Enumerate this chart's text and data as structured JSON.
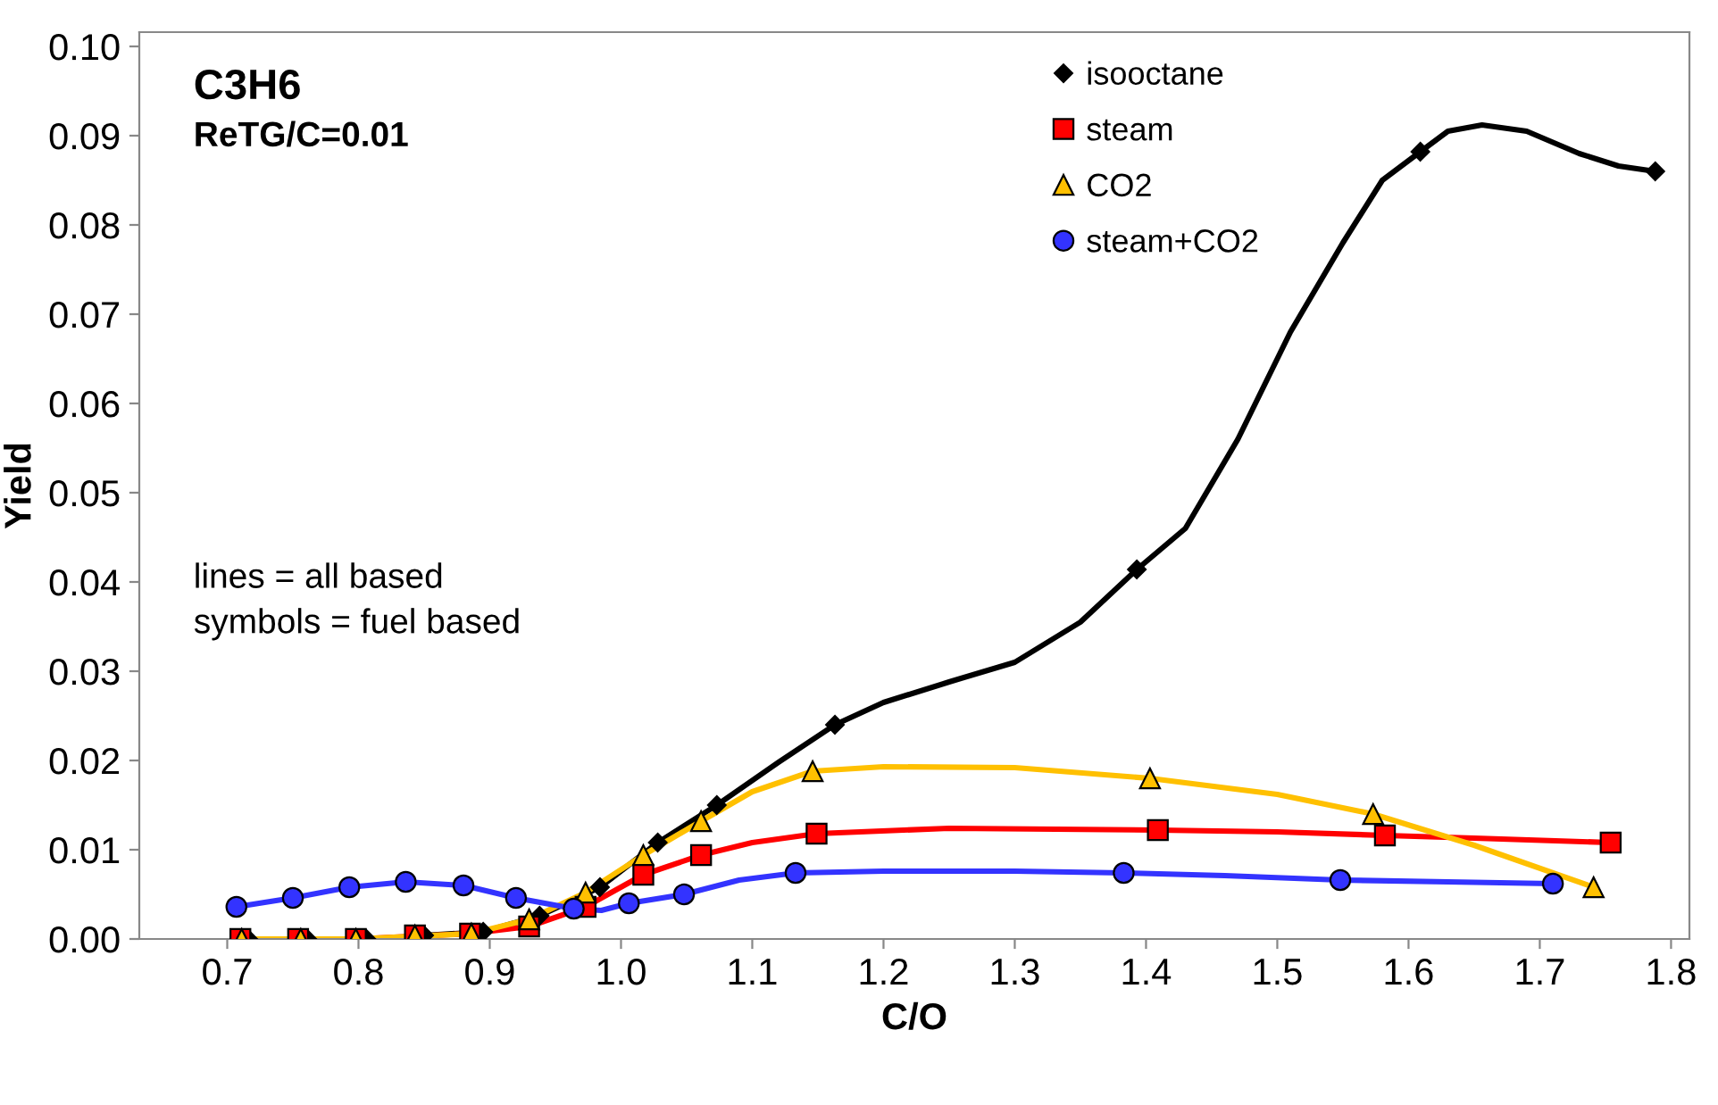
{
  "chart_data": {
    "type": "scatter",
    "xlabel": "C/O",
    "ylabel": "Yield",
    "annotations": [
      "C3H6",
      "ReTG/C=0.01",
      "lines = all based",
      "symbols = fuel based"
    ],
    "xlim": [
      0.633,
      1.814
    ],
    "xticks": [
      0.7,
      0.8,
      0.9,
      {
        "value": 1.0,
        "label": "1.0"
      },
      1.1,
      1.2,
      1.3,
      1.4,
      1.5,
      1.6,
      1.7,
      1.8
    ],
    "ylim": [
      0,
      0.1016
    ],
    "yticks": [
      {
        "value": 0,
        "label": "0.00"
      },
      {
        "value": 0.01,
        "label": "0.01"
      },
      {
        "value": 0.02,
        "label": "0.02"
      },
      {
        "value": 0.03,
        "label": "0.03"
      },
      {
        "value": 0.04,
        "label": "0.04"
      },
      {
        "value": 0.05,
        "label": "0.05"
      },
      {
        "value": 0.06,
        "label": "0.06"
      },
      {
        "value": 0.07,
        "label": "0.07"
      },
      {
        "value": 0.08,
        "label": "0.08"
      },
      {
        "value": 0.09,
        "label": "0.09"
      },
      {
        "value": 0.1,
        "label": "0.10"
      }
    ],
    "grid": false,
    "legend": "top right",
    "line_style": "solid",
    "series": [
      {
        "type": "line",
        "color": "#000000",
        "x": [
          0.85,
          0.895,
          0.938,
          0.984,
          1.028,
          1.073,
          1.12,
          1.163,
          1.2,
          1.25,
          1.3,
          1.35,
          1.393,
          1.43,
          1.47,
          1.51,
          1.55,
          1.58,
          1.609,
          1.63,
          1.656,
          1.69,
          1.73,
          1.76,
          1.788
        ],
        "values": [
          0.0004,
          0.0008,
          0.0026,
          0.0058,
          0.0108,
          0.015,
          0.0198,
          0.024,
          0.0265,
          0.0288,
          0.031,
          0.0355,
          0.0414,
          0.046,
          0.056,
          0.068,
          0.078,
          0.085,
          0.0882,
          0.0905,
          0.0912,
          0.0905,
          0.088,
          0.0866,
          0.086
        ]
      },
      {
        "type": "line",
        "color": "#ff0000",
        "x": [
          0.71,
          0.798,
          0.885,
          0.93,
          0.973,
          1.017,
          1.061,
          1.1,
          1.149,
          1.25,
          1.409,
          1.5,
          1.582,
          1.65,
          1.754
        ],
        "values": [
          0,
          0,
          0.0006,
          0.0014,
          0.0036,
          0.0072,
          0.0094,
          0.0108,
          0.0118,
          0.0124,
          0.0122,
          0.012,
          0.0116,
          0.0113,
          0.0108
        ]
      },
      {
        "type": "line",
        "color": "#ffc000",
        "x": [
          0.711,
          0.798,
          0.886,
          0.93,
          0.973,
          1.017,
          1.061,
          1.1,
          1.146,
          1.2,
          1.3,
          1.403,
          1.5,
          1.573,
          1.65,
          1.741
        ],
        "values": [
          0,
          0,
          0.0006,
          0.0022,
          0.0052,
          0.0094,
          0.0132,
          0.0165,
          0.0188,
          0.0193,
          0.0192,
          0.018,
          0.0162,
          0.014,
          0.0105,
          0.0058
        ]
      },
      {
        "type": "line",
        "color": "#3333ff",
        "x": [
          0.707,
          0.75,
          0.793,
          0.836,
          0.88,
          0.92,
          0.964,
          0.985,
          1.006,
          1.048,
          1.09,
          1.133,
          1.2,
          1.3,
          1.383,
          1.46,
          1.548,
          1.63,
          1.71
        ],
        "values": [
          0.0036,
          0.0046,
          0.0058,
          0.0064,
          0.006,
          0.0046,
          0.0034,
          0.0032,
          0.004,
          0.005,
          0.0066,
          0.0074,
          0.0076,
          0.0076,
          0.0074,
          0.0071,
          0.0066,
          0.0064,
          0.0062
        ]
      },
      {
        "name": "isooctane",
        "color": "#000000",
        "marker": "diamond",
        "x": [
          0.716,
          0.761,
          0.806,
          0.85,
          0.895,
          0.938,
          0.984,
          1.028,
          1.073,
          1.163,
          1.393,
          1.609,
          1.788
        ],
        "values": [
          0,
          0,
          0,
          0.0004,
          0.0008,
          0.0026,
          0.0058,
          0.0108,
          0.015,
          0.024,
          0.0414,
          0.0882,
          0.086
        ]
      },
      {
        "name": "steam",
        "color": "#ff0000",
        "marker": "square",
        "x": [
          0.71,
          0.754,
          0.798,
          0.843,
          0.885,
          0.93,
          0.973,
          1.017,
          1.061,
          1.149,
          1.409,
          1.582,
          1.754
        ],
        "values": [
          0,
          0,
          0,
          0.0004,
          0.0006,
          0.0014,
          0.0036,
          0.0072,
          0.0094,
          0.0118,
          0.0122,
          0.0116,
          0.0108
        ]
      },
      {
        "name": "CO2",
        "color": "#ffc000",
        "marker": "triangle",
        "x": [
          0.711,
          0.756,
          0.798,
          0.843,
          0.886,
          0.93,
          0.973,
          1.017,
          1.061,
          1.146,
          1.403,
          1.573,
          1.741
        ],
        "values": [
          0,
          0,
          0,
          0.0004,
          0.0006,
          0.0022,
          0.0052,
          0.0094,
          0.0132,
          0.0188,
          0.018,
          0.014,
          0.0058
        ]
      },
      {
        "name": "steam+CO2",
        "color": "#3333ff",
        "marker": "circle",
        "x": [
          0.707,
          0.75,
          0.793,
          0.836,
          0.88,
          0.92,
          0.964,
          1.006,
          1.048,
          1.133,
          1.383,
          1.548,
          1.71
        ],
        "values": [
          0.0036,
          0.0046,
          0.0058,
          0.0064,
          0.006,
          0.0046,
          0.0034,
          0.004,
          0.005,
          0.0074,
          0.0074,
          0.0066,
          0.0062
        ]
      }
    ]
  }
}
